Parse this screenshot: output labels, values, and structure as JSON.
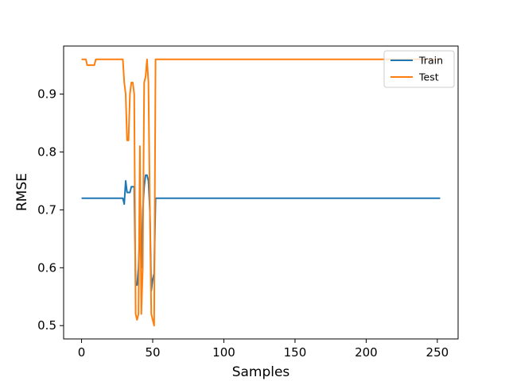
{
  "chart_data": {
    "type": "line",
    "title": "",
    "xlabel": "Samples",
    "ylabel": "RMSE",
    "xlim": [
      -12.6,
      264.6
    ],
    "ylim": [
      0.477,
      0.983
    ],
    "xticks": [
      0,
      50,
      100,
      150,
      200,
      250
    ],
    "yticks": [
      0.5,
      0.6,
      0.7,
      0.8,
      0.9
    ],
    "xtick_labels": [
      "0",
      "50",
      "100",
      "150",
      "200",
      "250"
    ],
    "ytick_labels": [
      "0.5",
      "0.6",
      "0.7",
      "0.8",
      "0.9"
    ],
    "grid": false,
    "legend_position": "top-right",
    "series": [
      {
        "name": "Train",
        "color": "#1f77b4",
        "points": [
          [
            0,
            0.72
          ],
          [
            29,
            0.72
          ],
          [
            30,
            0.71
          ],
          [
            31,
            0.75
          ],
          [
            32,
            0.73
          ],
          [
            34,
            0.73
          ],
          [
            35,
            0.74
          ],
          [
            37,
            0.74
          ],
          [
            38,
            0.57
          ],
          [
            39,
            0.57
          ],
          [
            40,
            0.6
          ],
          [
            41,
            0.67
          ],
          [
            42,
            0.6
          ],
          [
            43,
            0.7
          ],
          [
            44,
            0.74
          ],
          [
            45,
            0.76
          ],
          [
            46,
            0.76
          ],
          [
            47,
            0.75
          ],
          [
            48,
            0.7
          ],
          [
            49,
            0.56
          ],
          [
            50,
            0.58
          ],
          [
            51,
            0.59
          ],
          [
            52,
            0.72
          ],
          [
            252,
            0.72
          ]
        ]
      },
      {
        "name": "Test",
        "color": "#ff7f0e",
        "points": [
          [
            0,
            0.96
          ],
          [
            3,
            0.96
          ],
          [
            4,
            0.95
          ],
          [
            9,
            0.95
          ],
          [
            10,
            0.96
          ],
          [
            29,
            0.96
          ],
          [
            30,
            0.92
          ],
          [
            31,
            0.9
          ],
          [
            32,
            0.82
          ],
          [
            33,
            0.82
          ],
          [
            34,
            0.9
          ],
          [
            35,
            0.92
          ],
          [
            36,
            0.92
          ],
          [
            37,
            0.9
          ],
          [
            38,
            0.52
          ],
          [
            39,
            0.51
          ],
          [
            40,
            0.52
          ],
          [
            41,
            0.81
          ],
          [
            42,
            0.52
          ],
          [
            43,
            0.6
          ],
          [
            44,
            0.92
          ],
          [
            45,
            0.93
          ],
          [
            46,
            0.96
          ],
          [
            47,
            0.92
          ],
          [
            48,
            0.7
          ],
          [
            49,
            0.52
          ],
          [
            50,
            0.51
          ],
          [
            51,
            0.5
          ],
          [
            52,
            0.96
          ],
          [
            252,
            0.96
          ]
        ]
      }
    ]
  }
}
